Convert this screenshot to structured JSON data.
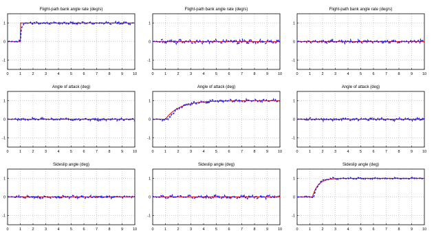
{
  "chart_data": [
    {
      "type": "line",
      "title": "Flight-path bank angle rate (deg/s)",
      "xlim": [
        0,
        10
      ],
      "ylim": [
        -1.5,
        1.5
      ],
      "x_ticks": [
        0,
        1,
        2,
        3,
        4,
        5,
        6,
        7,
        8,
        9,
        10
      ],
      "y_ticks": [
        -1,
        0,
        1
      ],
      "reference": {
        "x": [
          0,
          1,
          1,
          10
        ],
        "y": [
          0,
          0,
          1,
          1
        ]
      },
      "response": {
        "type": "first-order",
        "delay": 1,
        "tau": 0.08,
        "noise": 0.06
      }
    },
    {
      "type": "line",
      "title": "Flight-path bank angle rate (deg/s)",
      "xlim": [
        0,
        10
      ],
      "ylim": [
        -1.5,
        1.5
      ],
      "x_ticks": [
        0,
        1,
        2,
        3,
        4,
        5,
        6,
        7,
        8,
        9,
        10
      ],
      "y_ticks": [
        -1,
        0,
        1
      ],
      "reference": {
        "x": [
          0,
          10
        ],
        "y": [
          0,
          0
        ]
      },
      "response": {
        "type": "flat",
        "noise": 0.08
      }
    },
    {
      "type": "line",
      "title": "Flight-path bank angle rate (deg/s)",
      "xlim": [
        0,
        10
      ],
      "ylim": [
        -1.5,
        1.5
      ],
      "x_ticks": [
        0,
        1,
        2,
        3,
        4,
        5,
        6,
        7,
        8,
        9,
        10
      ],
      "y_ticks": [
        -1,
        0,
        1
      ],
      "reference": {
        "x": [
          0,
          10
        ],
        "y": [
          0,
          0
        ]
      },
      "response": {
        "type": "flat",
        "noise": 0.07
      }
    },
    {
      "type": "line",
      "title": "Angle of attack (deg)",
      "xlim": [
        0,
        10
      ],
      "ylim": [
        -1.5,
        1.5
      ],
      "x_ticks": [
        0,
        1,
        2,
        3,
        4,
        5,
        6,
        7,
        8,
        9,
        10
      ],
      "y_ticks": [
        -1,
        0,
        1
      ],
      "reference": {
        "x": [
          0,
          10
        ],
        "y": [
          0,
          0
        ]
      },
      "response": {
        "type": "flat",
        "noise": 0.06
      }
    },
    {
      "type": "line",
      "title": "Angle of attack (deg)",
      "xlim": [
        0,
        10
      ],
      "ylim": [
        -1.5,
        1.5
      ],
      "x_ticks": [
        0,
        1,
        2,
        3,
        4,
        5,
        6,
        7,
        8,
        9,
        10
      ],
      "y_ticks": [
        -1,
        0,
        1
      ],
      "reference": {
        "type": "first-order",
        "delay": 1,
        "tau": 1.1
      },
      "response": {
        "type": "first-order",
        "delay": 1.2,
        "tau": 1.0,
        "noise": 0.06
      }
    },
    {
      "type": "line",
      "title": "Angle of attack (deg)",
      "xlim": [
        0,
        10
      ],
      "ylim": [
        -1.5,
        1.5
      ],
      "x_ticks": [
        0,
        1,
        2,
        3,
        4,
        5,
        6,
        7,
        8,
        9,
        10
      ],
      "y_ticks": [
        -1,
        0,
        1
      ],
      "reference": {
        "x": [
          0,
          10
        ],
        "y": [
          0,
          0
        ]
      },
      "response": {
        "type": "flat",
        "noise": 0.06
      }
    },
    {
      "type": "line",
      "title": "Sideslip angle (deg)",
      "xlim": [
        0,
        10
      ],
      "ylim": [
        -1.5,
        1.5
      ],
      "x_ticks": [
        0,
        1,
        2,
        3,
        4,
        5,
        6,
        7,
        8,
        9,
        10
      ],
      "y_ticks": [
        -1,
        0,
        1
      ],
      "reference": {
        "x": [
          0,
          10
        ],
        "y": [
          0,
          0
        ]
      },
      "response": {
        "type": "flat",
        "noise": 0.06
      }
    },
    {
      "type": "line",
      "title": "Sideslip angle (deg)",
      "xlim": [
        0,
        10
      ],
      "ylim": [
        -1.5,
        1.5
      ],
      "x_ticks": [
        0,
        1,
        2,
        3,
        4,
        5,
        6,
        7,
        8,
        9,
        10
      ],
      "y_ticks": [
        -1,
        0,
        1
      ],
      "reference": {
        "x": [
          0,
          10
        ],
        "y": [
          0,
          0
        ]
      },
      "response": {
        "type": "flat",
        "noise": 0.07
      }
    },
    {
      "type": "line",
      "title": "Sideslip angle (deg)",
      "xlim": [
        0,
        10
      ],
      "ylim": [
        -1.5,
        1.5
      ],
      "x_ticks": [
        0,
        1,
        2,
        3,
        4,
        5,
        6,
        7,
        8,
        9,
        10
      ],
      "y_ticks": [
        -1,
        0,
        1
      ],
      "reference": {
        "type": "first-order",
        "delay": 1.2,
        "tau": 0.45
      },
      "response": {
        "type": "first-order",
        "delay": 1.3,
        "tau": 0.4,
        "overshoot": 0.1,
        "noise": 0.04
      }
    }
  ]
}
